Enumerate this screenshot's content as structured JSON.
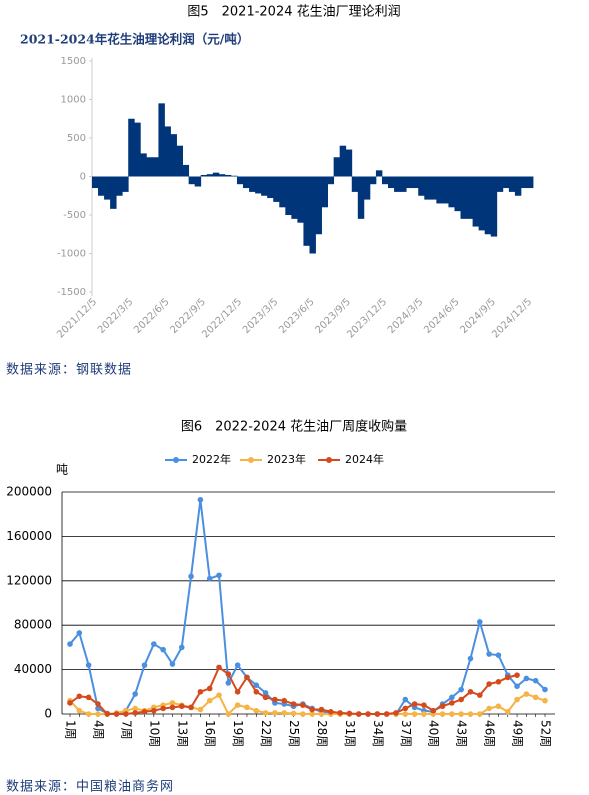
{
  "chart_data": [
    {
      "type": "area",
      "caption": "图5　2021-2024 花生油厂理论利润",
      "title": "2021-2024年花生油理论利润（元/吨）",
      "source": "数据来源：钢联数据",
      "color": "#00357a",
      "categories": [
        "2021/12/5",
        null,
        null,
        null,
        null,
        null,
        "2022/3/5",
        null,
        null,
        null,
        null,
        null,
        "2022/6/5",
        null,
        null,
        null,
        null,
        null,
        "2022/9/5",
        null,
        null,
        null,
        null,
        null,
        "2022/12/5",
        null,
        null,
        null,
        null,
        null,
        "2023/3/5",
        null,
        null,
        null,
        null,
        null,
        "2023/6/5",
        null,
        null,
        null,
        null,
        null,
        "2023/9/5",
        null,
        null,
        null,
        null,
        null,
        "2023/12/5",
        null,
        null,
        null,
        null,
        null,
        "2024/3/5",
        null,
        null,
        null,
        null,
        null,
        "2024/6/5",
        null,
        null,
        null,
        null,
        null,
        "2024/9/5",
        null,
        null,
        null,
        null,
        null,
        "2024/12/5"
      ],
      "values": [
        -150,
        -250,
        -300,
        -420,
        -250,
        -200,
        750,
        700,
        300,
        250,
        250,
        950,
        650,
        550,
        400,
        150,
        -100,
        -130,
        20,
        30,
        50,
        30,
        20,
        10,
        -100,
        -150,
        -200,
        -220,
        -250,
        -280,
        -330,
        -400,
        -500,
        -550,
        -600,
        -900,
        -1000,
        -750,
        -400,
        -100,
        250,
        400,
        350,
        -200,
        -550,
        -300,
        -100,
        80,
        -100,
        -150,
        -200,
        -200,
        -150,
        -150,
        -250,
        -300,
        -300,
        -350,
        -350,
        -400,
        -450,
        -550,
        -550,
        -650,
        -700,
        -750,
        -780,
        -200,
        -150,
        -200,
        -250,
        -150,
        -150
      ],
      "ylim": [
        -1500,
        1500
      ],
      "yticks": [
        1500,
        1000,
        500,
        0,
        -500,
        -1000,
        -1500
      ]
    },
    {
      "type": "line",
      "caption": "图6　2022-2024 花生油厂周度收购量",
      "y_label": "吨",
      "source": "数据来源：中国粮油商务网",
      "categories": [
        "1周",
        null,
        null,
        "4周",
        null,
        null,
        "7周",
        null,
        null,
        "10周",
        null,
        null,
        "13周",
        null,
        null,
        "16周",
        null,
        null,
        "19周",
        null,
        null,
        "22周",
        null,
        null,
        "25周",
        null,
        null,
        "28周",
        null,
        null,
        "31周",
        null,
        null,
        "34周",
        null,
        null,
        "37周",
        null,
        null,
        "40周",
        null,
        null,
        "43周",
        null,
        null,
        "46周",
        null,
        null,
        "49周",
        null,
        null,
        "52周"
      ],
      "series": [
        {
          "name": "2022年",
          "color": "#4a8fe0",
          "values": [
            63000,
            73000,
            44000,
            5000,
            500,
            0,
            3000,
            18000,
            44000,
            63000,
            58000,
            45000,
            60000,
            124000,
            193000,
            122000,
            125000,
            28000,
            44000,
            33000,
            26000,
            19000,
            10000,
            9000,
            7000,
            9000,
            5000,
            2000,
            1000,
            500,
            0,
            0,
            0,
            0,
            0,
            0,
            13000,
            6000,
            3000,
            2000,
            9000,
            15000,
            22000,
            50000,
            83000,
            54000,
            53000,
            35000,
            25000,
            32000,
            30000,
            22000
          ]
        },
        {
          "name": "2023年",
          "color": "#f5b445",
          "values": [
            12000,
            3000,
            0,
            0,
            0,
            1000,
            3000,
            5000,
            3000,
            6000,
            8000,
            10000,
            8000,
            6000,
            4000,
            12000,
            17000,
            0,
            8000,
            6000,
            3000,
            1000,
            1000,
            1000,
            500,
            0,
            0,
            0,
            0,
            0,
            0,
            0,
            0,
            0,
            0,
            0,
            0,
            0,
            0,
            0,
            0,
            0,
            0,
            0,
            0,
            5000,
            7000,
            2000,
            13000,
            18000,
            15000,
            12000
          ]
        },
        {
          "name": "2024年",
          "color": "#d44a1c",
          "values": [
            10000,
            16000,
            15000,
            9000,
            0,
            0,
            0,
            1000,
            2000,
            3000,
            5000,
            6000,
            7000,
            6000,
            20000,
            23000,
            42000,
            36000,
            20000,
            33000,
            20000,
            15000,
            13000,
            12000,
            9000,
            8000,
            4000,
            4000,
            2000,
            1000,
            500,
            0,
            0,
            0,
            0,
            1000,
            5000,
            9000,
            8000,
            3000,
            7000,
            10000,
            13000,
            20000,
            17000,
            27000,
            29000,
            33000,
            35000,
            null,
            null,
            null
          ]
        }
      ],
      "ylim": [
        0,
        200000
      ],
      "yticks": [
        0,
        40000,
        80000,
        120000,
        160000,
        200000
      ],
      "grid": true,
      "legend": "top"
    }
  ]
}
